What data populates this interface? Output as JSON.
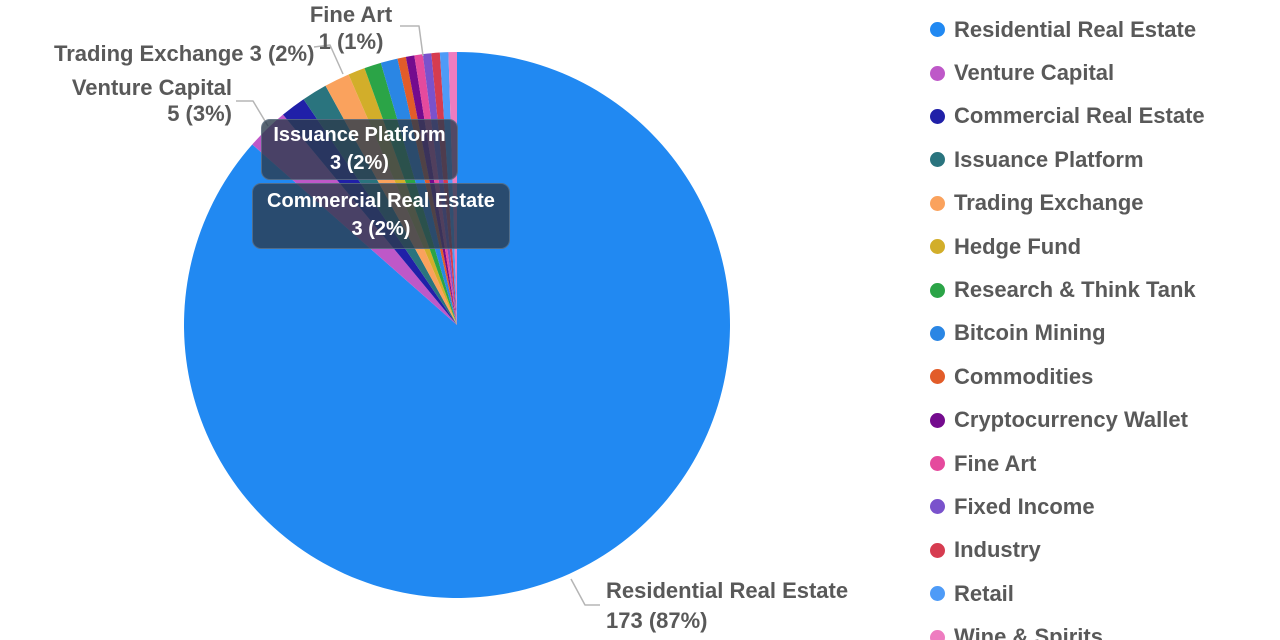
{
  "chart_data": {
    "type": "pie",
    "title": "",
    "legend_position": "right",
    "start_angle_deg": 0,
    "direction": "clockwise",
    "total": 200,
    "slices": [
      {
        "label": "Residential Real Estate",
        "value": 173,
        "pct": "87%",
        "callout": "173 (87%)",
        "color": "#2189F2"
      },
      {
        "label": "Venture Capital",
        "value": 5,
        "pct": "3%",
        "callout": "5 (3%)",
        "color": "#BE58C8"
      },
      {
        "label": "Commercial Real Estate",
        "value": 3,
        "pct": "2%",
        "callout": "3 (2%)",
        "color": "#2020A8"
      },
      {
        "label": "Issuance Platform",
        "value": 3,
        "pct": "2%",
        "callout": "3 (2%)",
        "color": "#2A747E"
      },
      {
        "label": "Trading Exchange",
        "value": 3,
        "pct": "2%",
        "callout": "3 (2%)",
        "color": "#FAA25D"
      },
      {
        "label": "Hedge Fund",
        "value": 2,
        "pct": "1%",
        "callout": null,
        "color": "#D2AE2A"
      },
      {
        "label": "Research & Think Tank",
        "value": 2,
        "pct": "1%",
        "callout": null,
        "color": "#2BA447"
      },
      {
        "label": "Bitcoin Mining",
        "value": 2,
        "pct": "1%",
        "callout": null,
        "color": "#2A86E4"
      },
      {
        "label": "Commodities",
        "value": 1,
        "pct": "1%",
        "callout": null,
        "color": "#E25C29"
      },
      {
        "label": "Cryptocurrency Wallet",
        "value": 1,
        "pct": "1%",
        "callout": null,
        "color": "#740B8E"
      },
      {
        "label": "Fine Art",
        "value": 1,
        "pct": "1%",
        "callout": "1 (1%)",
        "color": "#E54A9D"
      },
      {
        "label": "Fixed Income",
        "value": 1,
        "pct": "1%",
        "callout": null,
        "color": "#7A52CC"
      },
      {
        "label": "Industry",
        "value": 1,
        "pct": "1%",
        "callout": null,
        "color": "#D63C50"
      },
      {
        "label": "Retail",
        "value": 1,
        "pct": "1%",
        "callout": null,
        "color": "#4E9BF7"
      },
      {
        "label": "Wine & Spirits",
        "value": 1,
        "pct": "1%",
        "callout": null,
        "color": "#EE7CC0"
      }
    ]
  },
  "callouts": {
    "fine_art": {
      "title": "Fine Art",
      "value": "1 (1%)"
    },
    "trading": {
      "text": "Trading Exchange 3 (2%)"
    },
    "venture": {
      "title": "Venture Capital",
      "value": "5 (3%)"
    },
    "issuance": {
      "title": "Issuance Platform",
      "value": "3 (2%)"
    },
    "commercial": {
      "title": "Commercial Real Estate",
      "value": "3 (2%)"
    },
    "residential": {
      "title": "Residential Real Estate",
      "value": "173 (87%)"
    }
  },
  "legend": {
    "items": [
      {
        "label": "Residential Real Estate",
        "color": "#2189F2"
      },
      {
        "label": "Venture Capital",
        "color": "#BE58C8"
      },
      {
        "label": "Commercial Real Estate",
        "color": "#2020A8"
      },
      {
        "label": "Issuance Platform",
        "color": "#2A747E"
      },
      {
        "label": "Trading Exchange",
        "color": "#FAA25D"
      },
      {
        "label": "Hedge Fund",
        "color": "#D2AE2A"
      },
      {
        "label": "Research & Think Tank",
        "color": "#2BA447"
      },
      {
        "label": "Bitcoin Mining",
        "color": "#2A86E4"
      },
      {
        "label": "Commodities",
        "color": "#E25C29"
      },
      {
        "label": "Cryptocurrency Wallet",
        "color": "#740B8E"
      },
      {
        "label": "Fine Art",
        "color": "#E54A9D"
      },
      {
        "label": "Fixed Income",
        "color": "#7A52CC"
      },
      {
        "label": "Industry",
        "color": "#D63C50"
      },
      {
        "label": "Retail",
        "color": "#4E9BF7"
      },
      {
        "label": "Wine & Spirits",
        "color": "#EE7CC0"
      }
    ]
  },
  "colors": {
    "label_text": "#595959",
    "leader_line": "#B5B5B5",
    "tooltip_bg": "rgba(44,60,78,0.8)"
  }
}
